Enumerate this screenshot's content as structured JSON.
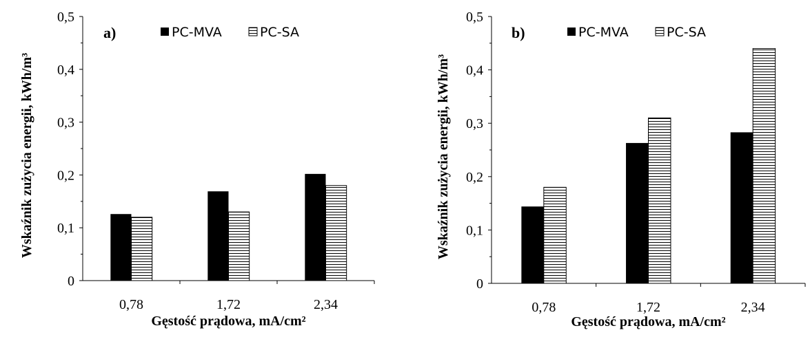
{
  "chart_data": [
    {
      "type": "bar",
      "panel_label": "a)",
      "categories": [
        "0,78",
        "1,72",
        "2,34"
      ],
      "series": [
        {
          "name": "PC-MVA",
          "values": [
            0.126,
            0.169,
            0.202
          ],
          "fill": "solid"
        },
        {
          "name": "PC-SA",
          "values": [
            0.12,
            0.13,
            0.18
          ],
          "fill": "horizontal-stripes"
        }
      ],
      "ylim": [
        0,
        0.5
      ],
      "yticks": [
        "0",
        "0,1",
        "0,2",
        "0,3",
        "0,4",
        "0,5"
      ],
      "xlabel": "Gęstość prądowa, mA/cm²",
      "ylabel": "Wskaźnik zużycia energii, kWh/m³",
      "legend_position": "top",
      "grid": false
    },
    {
      "type": "bar",
      "panel_label": "b)",
      "categories": [
        "0,78",
        "1,72",
        "2,34"
      ],
      "series": [
        {
          "name": "PC-MVA",
          "values": [
            0.144,
            0.263,
            0.283
          ],
          "fill": "solid"
        },
        {
          "name": "PC-SA",
          "values": [
            0.18,
            0.31,
            0.44
          ],
          "fill": "horizontal-stripes"
        }
      ],
      "ylim": [
        0,
        0.5
      ],
      "yticks": [
        "0",
        "0,1",
        "0,2",
        "0,3",
        "0,4",
        "0,5"
      ],
      "xlabel": "Gęstość prądowa, mA/cm²",
      "ylabel": "Wskaźnik zużycia energii, kWh/m³",
      "legend_position": "top",
      "grid": false
    }
  ],
  "colors": {
    "bar_solid": "#000000",
    "stripe": "#000000",
    "background": "#ffffff"
  }
}
